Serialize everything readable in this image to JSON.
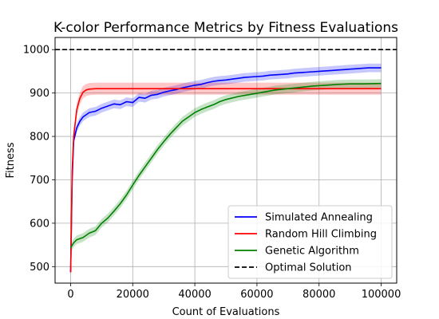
{
  "chart_data": {
    "type": "line",
    "title": "K-color Performance Metrics by Fitness Evaluations",
    "xlabel": "Count of Evaluations",
    "ylabel": "Fitness",
    "xlim": [
      -5000,
      105000
    ],
    "ylim": [
      462,
      1028
    ],
    "xticks": [
      0,
      20000,
      40000,
      60000,
      80000,
      100000
    ],
    "yticks": [
      500,
      600,
      700,
      800,
      900,
      1000
    ],
    "grid": true,
    "legend_position": "lower-right",
    "series": [
      {
        "name": "Simulated Annealing",
        "color": "#0000ff",
        "band": 10,
        "x": [
          0,
          500,
          1000,
          2000,
          3000,
          4000,
          6000,
          8000,
          10000,
          12000,
          14000,
          16000,
          18000,
          20000,
          22000,
          24000,
          26000,
          28000,
          30000,
          32000,
          34000,
          36000,
          38000,
          40000,
          42000,
          44000,
          46000,
          48000,
          50000,
          52000,
          54000,
          56000,
          58000,
          60000,
          62000,
          64000,
          66000,
          68000,
          70000,
          72000,
          74000,
          76000,
          78000,
          80000,
          82000,
          84000,
          86000,
          88000,
          90000,
          92000,
          94000,
          96000,
          98000,
          100000
        ],
        "y": [
          487,
          700,
          790,
          820,
          835,
          845,
          855,
          858,
          865,
          870,
          875,
          873,
          880,
          878,
          890,
          888,
          895,
          897,
          902,
          905,
          908,
          912,
          915,
          918,
          920,
          924,
          927,
          929,
          930,
          932,
          934,
          936,
          937,
          938,
          939,
          941,
          942,
          943,
          944,
          946,
          947,
          948,
          949,
          950,
          951,
          952,
          953,
          954,
          955,
          956,
          957,
          958,
          958,
          958
        ]
      },
      {
        "name": "Random Hill Climbing",
        "color": "#ff0000",
        "band": 14,
        "x": [
          0,
          500,
          1000,
          2000,
          3000,
          4000,
          5000,
          6000,
          8000,
          10000,
          20000,
          30000,
          40000,
          50000,
          60000,
          70000,
          80000,
          90000,
          100000
        ],
        "y": [
          487,
          720,
          800,
          862,
          888,
          902,
          907,
          909,
          910,
          910,
          910,
          910,
          910,
          910,
          910,
          910,
          910,
          910,
          910
        ]
      },
      {
        "name": "Genetic Algorithm",
        "color": "#008000",
        "band": 10,
        "x": [
          0,
          1000,
          2000,
          4000,
          6000,
          8000,
          10000,
          12000,
          14000,
          16000,
          18000,
          20000,
          22000,
          24000,
          26000,
          28000,
          30000,
          32000,
          34000,
          36000,
          38000,
          40000,
          42000,
          44000,
          46000,
          48000,
          50000,
          54000,
          58000,
          62000,
          66000,
          70000,
          74000,
          78000,
          82000,
          86000,
          90000,
          94000,
          100000
        ],
        "y": [
          543,
          555,
          562,
          567,
          577,
          583,
          600,
          612,
          628,
          645,
          665,
          688,
          710,
          730,
          750,
          770,
          788,
          805,
          820,
          835,
          845,
          855,
          862,
          868,
          873,
          880,
          885,
          892,
          897,
          902,
          907,
          910,
          913,
          916,
          918,
          920,
          921,
          921,
          922
        ]
      },
      {
        "name": "Optimal Solution",
        "color": "#000000",
        "dashed": true,
        "constant": 1000
      }
    ]
  }
}
